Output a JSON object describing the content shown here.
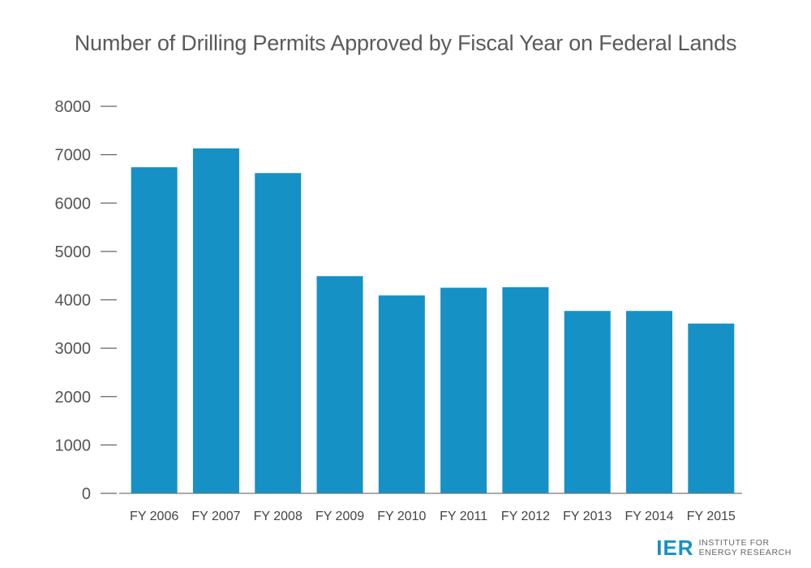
{
  "chart_data": {
    "type": "bar",
    "title": "Number of Drilling Permits Approved by Fiscal Year on Federal Lands",
    "xlabel": "",
    "ylabel": "",
    "categories": [
      "FY 2006",
      "FY 2007",
      "FY 2008",
      "FY 2009",
      "FY 2010",
      "FY 2011",
      "FY 2012",
      "FY 2013",
      "FY 2014",
      "FY 2015"
    ],
    "values": [
      6740,
      7130,
      6620,
      4490,
      4090,
      4250,
      4260,
      3770,
      3770,
      3510
    ],
    "ylim": [
      0,
      8000
    ],
    "yticks": [
      0,
      1000,
      2000,
      3000,
      4000,
      5000,
      6000,
      7000,
      8000
    ],
    "grid": false,
    "bar_color": "#1591c5"
  },
  "branding": {
    "logo_mark": "IER",
    "logo_line1": "INSTITUTE FOR",
    "logo_line2": "ENERGY RESEARCH",
    "logo_color": "#1591c5"
  }
}
